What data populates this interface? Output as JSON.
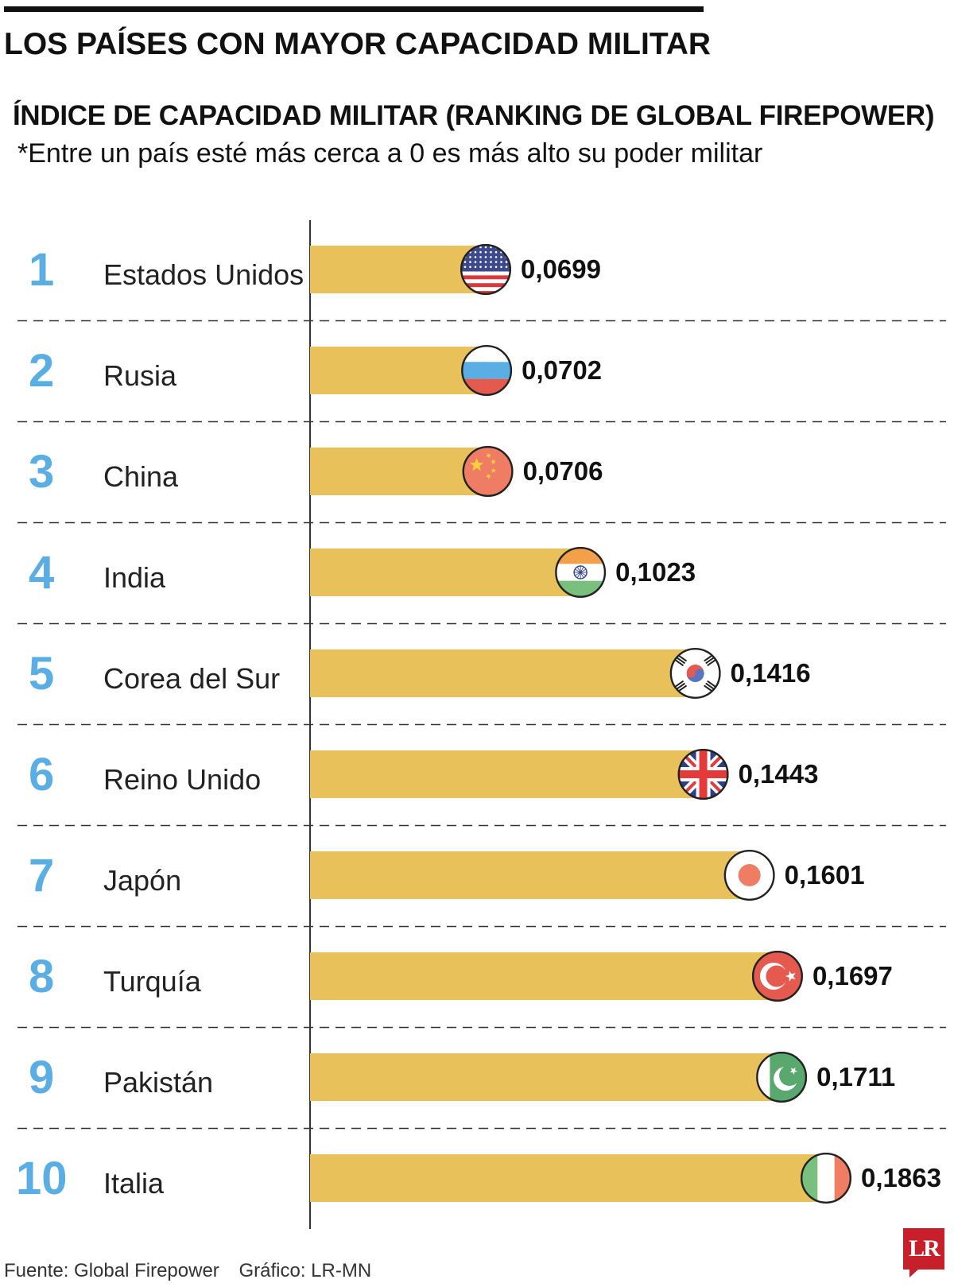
{
  "header": {
    "title": "LOS PAÍSES CON MAYOR CAPACIDAD MILITAR",
    "subtitle": "ÍNDICE DE CAPACIDAD MILITAR (RANKING DE GLOBAL FIREPOWER)",
    "note": "*Entre un país esté más cerca a 0 es más alto su poder militar"
  },
  "footer": {
    "source": "Fuente:  Global Firepower",
    "credit": "Gráfico: LR-MN"
  },
  "logo": {
    "text": "LR"
  },
  "colors": {
    "bar": "#e8c15a",
    "rank": "#5aaee3",
    "divider": "#333333",
    "axis": "#333333"
  },
  "chart_data": {
    "type": "bar",
    "orientation": "horizontal",
    "title": "ÍNDICE DE CAPACIDAD MILITAR (RANKING DE GLOBAL FIREPOWER)",
    "xlabel": "",
    "ylabel": "",
    "grid": false,
    "ranks": [
      "1",
      "2",
      "3",
      "4",
      "5",
      "6",
      "7",
      "8",
      "9",
      "10"
    ],
    "categories": [
      "Estados Unidos",
      "Rusia",
      "China",
      "India",
      "Corea del Sur",
      "Reino Unido",
      "Japón",
      "Turquía",
      "Pakistán",
      "Italia"
    ],
    "values": [
      0.0699,
      0.0702,
      0.0706,
      0.1023,
      0.1416,
      0.1443,
      0.1601,
      0.1697,
      0.1711,
      0.1863
    ],
    "value_labels": [
      "0,0699",
      "0,0702",
      "0,0706",
      "0,1023",
      "0,1416",
      "0,1443",
      "0,1601",
      "0,1697",
      "0,1711",
      "0,1863"
    ],
    "flag_icons": [
      "usa-flag-icon",
      "russia-flag-icon",
      "china-flag-icon",
      "india-flag-icon",
      "south-korea-flag-icon",
      "uk-flag-icon",
      "japan-flag-icon",
      "turkey-flag-icon",
      "pakistan-flag-icon",
      "italy-flag-icon"
    ]
  }
}
